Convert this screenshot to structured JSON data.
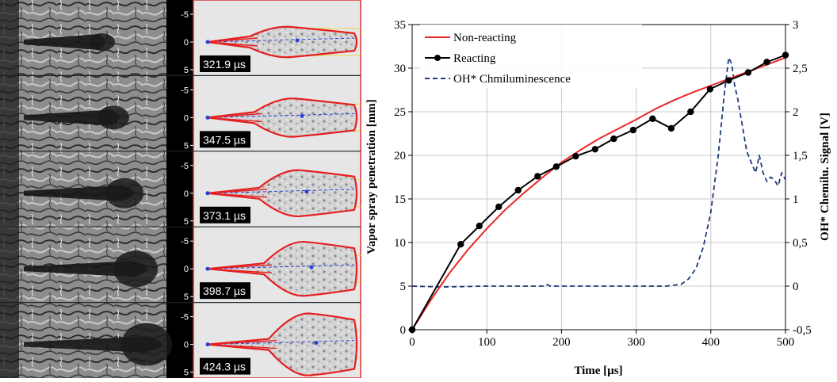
{
  "image_panel": {
    "frames": [
      {
        "time_label": "321.9 µs"
      },
      {
        "time_label": "347.5 µs"
      },
      {
        "time_label": "373.1 µs"
      },
      {
        "time_label": "398.7 µs"
      },
      {
        "time_label": "424.3 µs"
      }
    ],
    "tick_labels": [
      "-5",
      "0",
      "5"
    ]
  },
  "chart_data": {
    "type": "line",
    "title": "",
    "xlabel": "Time [µs]",
    "ylabel": "Vapor spray penetration [mm]",
    "y2label": "OH* Chemilu. Signal [V]",
    "xlim": [
      0,
      500
    ],
    "ylim": [
      0,
      35
    ],
    "y2lim": [
      -0.5,
      3
    ],
    "x_ticks": [
      "0",
      "100",
      "200",
      "300",
      "400",
      "500"
    ],
    "y_ticks": [
      "0",
      "5",
      "10",
      "15",
      "20",
      "25",
      "30",
      "35"
    ],
    "y2_ticks": [
      "-0,5",
      "0",
      "0,5",
      "1",
      "1,5",
      "2",
      "2,5",
      "3"
    ],
    "grid": true,
    "legend_position": "top-left",
    "series": [
      {
        "name": "Non-reacting",
        "axis": "left",
        "color": "#e8282a",
        "style": "solid",
        "x": [
          0,
          25,
          50,
          75,
          100,
          125,
          150,
          175,
          200,
          225,
          250,
          275,
          300,
          325,
          350,
          375,
          400,
          425,
          450,
          475,
          500
        ],
        "y": [
          0,
          3.4,
          6.5,
          9.2,
          11.6,
          13.8,
          15.7,
          17.5,
          19.2,
          20.6,
          21.9,
          23.0,
          24.1,
          25.3,
          26.3,
          27.2,
          28.0,
          28.8,
          29.6,
          30.4,
          31.2
        ]
      },
      {
        "name": "Reacting",
        "axis": "left",
        "color": "#000000",
        "style": "solid-markers",
        "x": [
          0,
          65,
          90,
          116,
          142,
          168,
          193,
          219,
          245,
          270,
          296,
          322,
          347,
          373,
          399,
          424,
          450,
          475,
          500
        ],
        "y": [
          0,
          9.8,
          11.9,
          14.1,
          16.0,
          17.6,
          18.7,
          19.9,
          20.7,
          21.9,
          22.9,
          24.2,
          23.1,
          25.0,
          27.6,
          28.6,
          29.5,
          30.7,
          31.5
        ]
      },
      {
        "name": "OH* Chmiluminescence",
        "axis": "right",
        "color": "#1f3b78",
        "style": "dashed",
        "x": [
          0,
          40,
          100,
          150,
          175,
          180,
          185,
          200,
          250,
          300,
          340,
          360,
          370,
          380,
          390,
          400,
          410,
          418,
          424,
          428,
          432,
          436,
          442,
          448,
          455,
          460,
          465,
          470,
          475,
          480,
          485,
          490,
          495,
          500
        ],
        "y": [
          0.0,
          -0.01,
          0.0,
          0.0,
          0.0,
          0.02,
          0.0,
          0.0,
          0.0,
          0.0,
          0.0,
          0.02,
          0.08,
          0.2,
          0.45,
          0.85,
          1.5,
          2.2,
          2.62,
          2.55,
          2.3,
          2.15,
          1.85,
          1.55,
          1.4,
          1.3,
          1.5,
          1.3,
          1.2,
          1.25,
          1.22,
          1.15,
          1.3,
          1.22
        ]
      }
    ]
  }
}
